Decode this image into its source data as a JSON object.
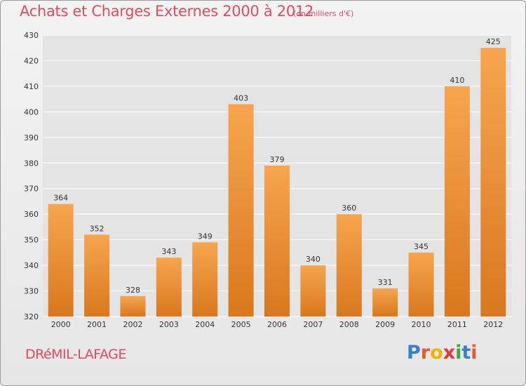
{
  "header": {
    "title": "Achats et Charges Externes 2000 à 2012",
    "unit": "(en milliers d'€)"
  },
  "footer": {
    "commune": "DRéMIL-LAFAGE",
    "brand_letters": [
      "P",
      "r",
      "o",
      "x",
      "i",
      "t",
      "i"
    ],
    "brand_colors": [
      "#3b7fd0",
      "#e65a2e",
      "#f0b400",
      "#e23a3a",
      "#42a63a",
      "#3b7fd0",
      "#e65a2e"
    ]
  },
  "colors": {
    "bar_top": "#f7a54f",
    "bar_bottom": "#d9781e",
    "grid": "#ffffff",
    "axis_text": "#333333",
    "title": "#e04a62"
  },
  "chart_data": {
    "type": "bar",
    "categories": [
      "2000",
      "2001",
      "2002",
      "2003",
      "2004",
      "2005",
      "2006",
      "2007",
      "2008",
      "2009",
      "2010",
      "2011",
      "2012"
    ],
    "values": [
      364,
      352,
      328,
      343,
      349,
      403,
      379,
      340,
      360,
      331,
      345,
      410,
      425
    ],
    "title": "Achats et Charges Externes 2000 à 2012",
    "xlabel": "",
    "ylabel": "",
    "ylim": [
      320,
      430
    ],
    "yticks": [
      320,
      330,
      340,
      350,
      360,
      370,
      380,
      390,
      400,
      410,
      420,
      430
    ],
    "grid": true
  }
}
